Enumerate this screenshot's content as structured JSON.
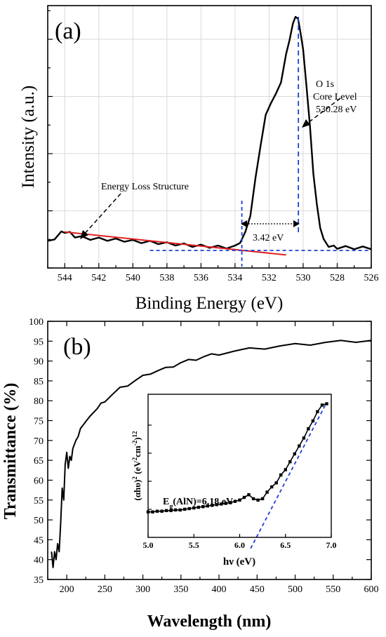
{
  "chart_data": [
    {
      "type": "line",
      "panel_label": "(a)",
      "xlabel": "Binding Energy (eV)",
      "ylabel": "Intensity (a.u.)",
      "xlim": [
        545,
        526
      ],
      "x_reversed": true,
      "x_ticks": [
        544,
        542,
        540,
        538,
        536,
        534,
        532,
        530,
        528,
        526
      ],
      "grid": true,
      "series": [
        {
          "color": "#000000",
          "x": [
            545.0,
            544.6,
            544.2,
            544.0,
            543.7,
            543.4,
            543.0,
            542.5,
            542.0,
            541.5,
            541.0,
            540.5,
            540.0,
            539.5,
            539.0,
            538.5,
            538.0,
            537.5,
            537.0,
            536.5,
            536.0,
            535.5,
            535.0,
            534.5,
            534.0,
            533.7,
            533.4,
            533.1,
            532.8,
            532.5,
            532.2,
            531.9,
            531.6,
            531.3,
            531.0,
            530.8,
            530.6,
            530.45,
            530.3,
            530.15,
            530.0,
            529.8,
            529.6,
            529.4,
            529.2,
            529.0,
            528.8,
            528.5,
            528.2,
            528.0,
            527.5,
            527.0,
            526.5,
            526.0
          ],
          "y": [
            0.032,
            0.05,
            0.072,
            0.078,
            0.07,
            0.058,
            0.052,
            0.048,
            0.046,
            0.044,
            0.042,
            0.04,
            0.036,
            0.034,
            0.032,
            0.03,
            0.026,
            0.024,
            0.021,
            0.018,
            0.016,
            0.014,
            0.012,
            0.011,
            0.012,
            0.035,
            0.07,
            0.15,
            0.3,
            0.45,
            0.57,
            0.63,
            0.66,
            0.72,
            0.83,
            0.9,
            0.96,
            1.0,
            0.98,
            0.93,
            0.85,
            0.7,
            0.52,
            0.33,
            0.19,
            0.1,
            0.04,
            0.018,
            0.012,
            0.01,
            0.01,
            0.008,
            0.008,
            0.008
          ]
        },
        {
          "name": "",
          "style": "fit",
          "color": "#e02020",
          "x": [
            544.0,
            531.0
          ],
          "y": [
            0.076,
            -0.022
          ]
        }
      ],
      "guides": {
        "baseline_y": -0.003,
        "baseline_x_from": 539,
        "onset_x": 533.6,
        "peak_x": 530.28,
        "color": "#1f3fd6"
      },
      "annotations": {
        "loss_label": "Energy Loss Structure",
        "core_line1": "O 1s",
        "core_line2": "Core Level",
        "core_line3": "530.28 eV",
        "gap_label": "3.42 eV"
      }
    },
    {
      "type": "line",
      "panel_label": "(b)",
      "xlabel": "Wavelength (nm)",
      "ylabel": "Transmittance (%)",
      "xlim": [
        175,
        600
      ],
      "ylim": [
        35,
        100
      ],
      "x_ticks": [
        200,
        250,
        300,
        350,
        400,
        450,
        500,
        550,
        600
      ],
      "y_ticks": [
        35,
        40,
        45,
        50,
        55,
        60,
        65,
        70,
        75,
        80,
        85,
        90,
        95,
        100
      ],
      "grid": false,
      "series": [
        {
          "color": "#000000",
          "x": [
            180,
            182,
            184,
            186,
            188,
            190,
            192,
            194,
            196,
            198,
            200,
            202,
            204,
            206,
            208,
            210,
            212,
            215,
            218,
            222,
            226,
            230,
            235,
            240,
            245,
            250,
            260,
            270,
            280,
            290,
            300,
            310,
            320,
            330,
            340,
            350,
            360,
            370,
            380,
            390,
            400,
            420,
            440,
            460,
            480,
            500,
            520,
            540,
            560,
            580,
            600
          ],
          "y": [
            42,
            38,
            42,
            40,
            44,
            42,
            49,
            58,
            55,
            64,
            67,
            63,
            66,
            65,
            68,
            69,
            70,
            71,
            73,
            74,
            75,
            76,
            77,
            78,
            79,
            80,
            81.5,
            83,
            84,
            85,
            86,
            87,
            87.5,
            88,
            88.8,
            89.5,
            90,
            90.5,
            91,
            91.4,
            91.8,
            92.4,
            92.9,
            93.3,
            93.7,
            94,
            94.3,
            94.6,
            94.8,
            95,
            95.1
          ]
        }
      ]
    },
    {
      "type": "scatter",
      "role": "inset",
      "xlabel": "hν (eV)",
      "ylabel_main": "(αhυ)",
      "ylabel_sup1": "2",
      "ylabel_mid": " (eV",
      "ylabel_sup2": "2",
      "ylabel_mid2": "cm",
      "ylabel_sup3": "-2",
      "ylabel_end": ")",
      "ylabel_sup4": "12",
      "xlim": [
        5.0,
        7.0
      ],
      "ylim": [
        0,
        1
      ],
      "x_ticks": [
        5.0,
        5.5,
        6.0,
        6.5,
        7.0
      ],
      "series": [
        {
          "color": "#000000",
          "x": [
            5.0,
            5.05,
            5.1,
            5.15,
            5.2,
            5.25,
            5.3,
            5.35,
            5.4,
            5.45,
            5.5,
            5.55,
            5.6,
            5.65,
            5.7,
            5.75,
            5.8,
            5.85,
            5.9,
            5.95,
            6.0,
            6.05,
            6.1,
            6.15,
            6.2,
            6.25,
            6.3,
            6.35,
            6.4,
            6.45,
            6.5,
            6.55,
            6.6,
            6.65,
            6.7,
            6.75,
            6.8,
            6.85,
            6.9,
            6.95
          ],
          "y": [
            0.14,
            0.14,
            0.145,
            0.145,
            0.15,
            0.15,
            0.155,
            0.155,
            0.16,
            0.165,
            0.17,
            0.175,
            0.18,
            0.185,
            0.19,
            0.195,
            0.2,
            0.205,
            0.21,
            0.22,
            0.23,
            0.25,
            0.27,
            0.24,
            0.23,
            0.24,
            0.29,
            0.33,
            0.36,
            0.42,
            0.46,
            0.52,
            0.58,
            0.64,
            0.7,
            0.77,
            0.83,
            0.9,
            0.95,
            0.96
          ]
        },
        {
          "name": "",
          "style": "fit",
          "color": "#1f3fd6",
          "x": [
            6.12,
            6.95
          ],
          "y": [
            -0.02,
            0.97
          ]
        }
      ],
      "annotation_eg_main": "E",
      "annotation_eg_sub": "g",
      "annotation_eg_rest": "(AlN)=6.18 eV"
    }
  ]
}
